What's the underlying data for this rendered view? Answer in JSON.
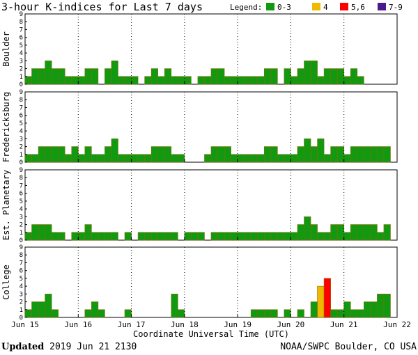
{
  "title": "3-hour K-indices for Last 7 days",
  "legend": {
    "label": "Legend:",
    "items": [
      {
        "label": "0-3",
        "color": "#119911"
      },
      {
        "label": "4",
        "color": "#f0b800"
      },
      {
        "label": "5,6",
        "color": "#ff0000"
      },
      {
        "label": "7-9",
        "color": "#4b1a8c"
      }
    ]
  },
  "footer": {
    "updated_label": "Updated",
    "updated_value": "2019 Jun 21 2130",
    "source": "NOAA/SWPC Boulder, CO USA"
  },
  "chart_data": {
    "type": "bar",
    "xlabel": "Coordinate Universal Time (UTC)",
    "x_ticks": [
      "Jun 15",
      "Jun 16",
      "Jun 17",
      "Jun 18",
      "Jun 19",
      "Jun 20",
      "Jun 21",
      "Jun 22"
    ],
    "y_ticks": [
      "0",
      "1",
      "2",
      "3",
      "4",
      "5",
      "6",
      "7",
      "8",
      "9"
    ],
    "ylim": [
      0,
      9
    ],
    "bin_hours": 3,
    "x_start": "2019-06-15 00:00 UTC",
    "grid": false,
    "series": [
      {
        "name": "Boulder",
        "values": [
          1,
          2,
          2,
          3,
          2,
          2,
          1,
          1,
          1,
          2,
          2,
          0,
          2,
          3,
          1,
          1,
          1,
          0,
          1,
          2,
          1,
          2,
          1,
          1,
          1,
          0,
          1,
          1,
          2,
          2,
          1,
          1,
          1,
          1,
          1,
          1,
          2,
          2,
          0,
          2,
          1,
          2,
          3,
          3,
          1,
          2,
          2,
          2,
          1,
          2,
          1,
          0,
          0,
          0,
          0,
          0
        ]
      },
      {
        "name": "Fredericksburg",
        "values": [
          1,
          1,
          2,
          2,
          2,
          2,
          1,
          2,
          1,
          2,
          1,
          1,
          2,
          3,
          1,
          1,
          1,
          1,
          1,
          2,
          2,
          2,
          1,
          1,
          0,
          0,
          0,
          1,
          2,
          2,
          2,
          1,
          1,
          1,
          1,
          1,
          2,
          2,
          1,
          1,
          1,
          2,
          3,
          2,
          3,
          1,
          2,
          2,
          1,
          2,
          2,
          2,
          2,
          2,
          2,
          0
        ]
      },
      {
        "name": "Est. Planetary",
        "values": [
          1,
          2,
          2,
          2,
          1,
          1,
          0,
          1,
          1,
          2,
          1,
          1,
          1,
          1,
          0,
          1,
          0,
          1,
          1,
          1,
          1,
          1,
          1,
          0,
          1,
          1,
          1,
          0,
          1,
          1,
          1,
          1,
          1,
          1,
          1,
          1,
          1,
          1,
          1,
          1,
          1,
          2,
          3,
          2,
          1,
          1,
          2,
          2,
          1,
          2,
          2,
          2,
          2,
          1,
          2,
          0
        ]
      },
      {
        "name": "College",
        "values": [
          1,
          2,
          2,
          3,
          1,
          0,
          0,
          0,
          0,
          1,
          2,
          1,
          0,
          0,
          0,
          1,
          0,
          0,
          0,
          0,
          0,
          0,
          3,
          1,
          0,
          0,
          0,
          0,
          0,
          0,
          0,
          0,
          0,
          0,
          1,
          1,
          1,
          1,
          0,
          1,
          0,
          1,
          0,
          2,
          4,
          5,
          1,
          1,
          2,
          1,
          1,
          2,
          2,
          3,
          3,
          0
        ]
      }
    ]
  }
}
